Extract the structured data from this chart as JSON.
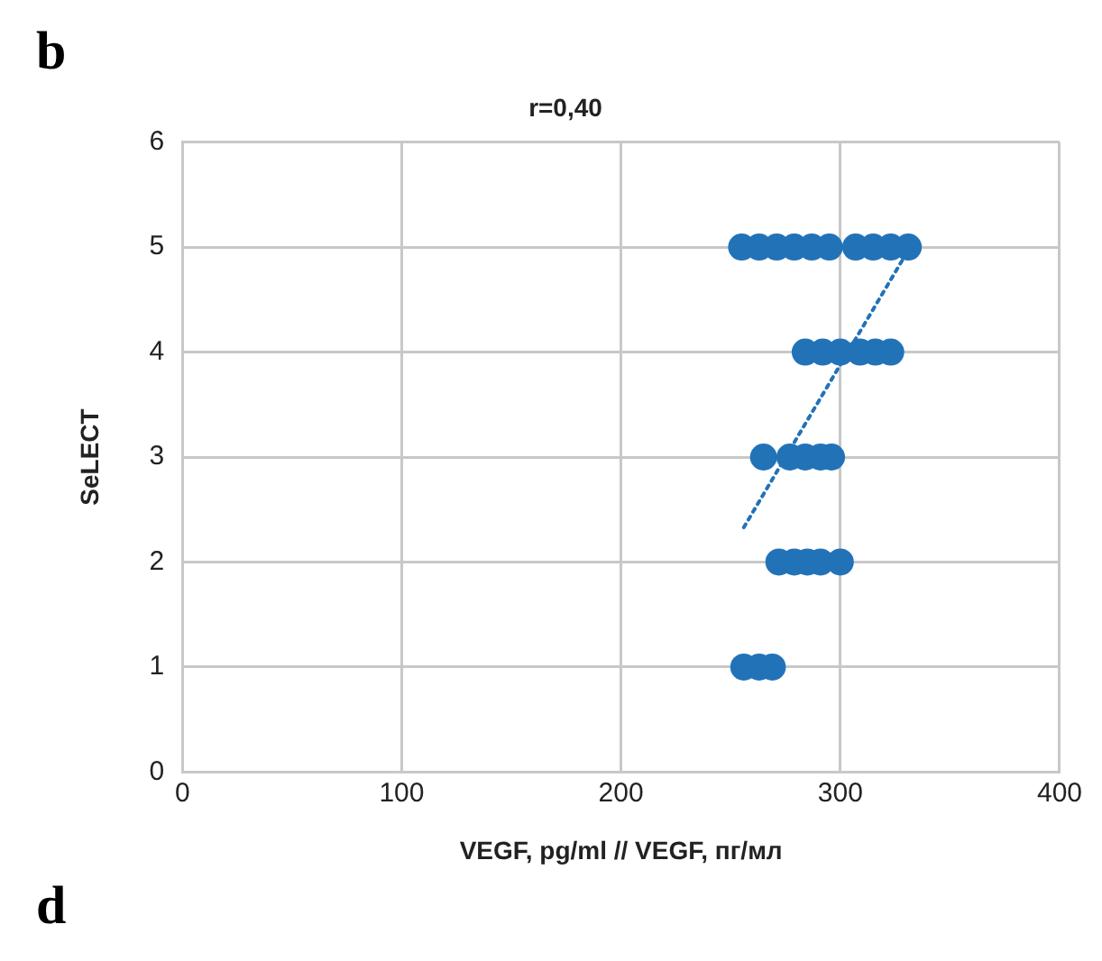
{
  "chart_data": {
    "type": "scatter",
    "title": "r=0,40",
    "xlabel": "VEGF, pg/ml // VEGF, пг/мл",
    "ylabel": "SeLECT",
    "xlim": [
      0,
      400
    ],
    "xticks": [
      0,
      100,
      200,
      300,
      400
    ],
    "ylim": [
      0,
      6
    ],
    "yticks": [
      0,
      1,
      2,
      3,
      4,
      5,
      6
    ],
    "grid": true,
    "legend": false,
    "marker": "circle",
    "annotations": [
      "b",
      "d"
    ],
    "series": [
      {
        "color": "#2272b8",
        "x": [
          255,
          263,
          271,
          279,
          287,
          295,
          307,
          315,
          323,
          331,
          284,
          292,
          300,
          309,
          316,
          323,
          265,
          277,
          284,
          291,
          296,
          272,
          279,
          285,
          291,
          300,
          256,
          263,
          269
        ],
        "values": [
          5,
          5,
          5,
          5,
          5,
          5,
          5,
          5,
          5,
          5,
          4,
          4,
          4,
          4,
          4,
          4,
          3,
          3,
          3,
          3,
          3,
          2,
          2,
          2,
          2,
          2,
          1,
          1,
          1
        ]
      },
      {
        "type": "line",
        "color": "#2272b8",
        "line_style": "dotted",
        "marker": "none",
        "x": [
          256,
          329
        ],
        "values": [
          2.33,
          4.9
        ]
      }
    ]
  }
}
